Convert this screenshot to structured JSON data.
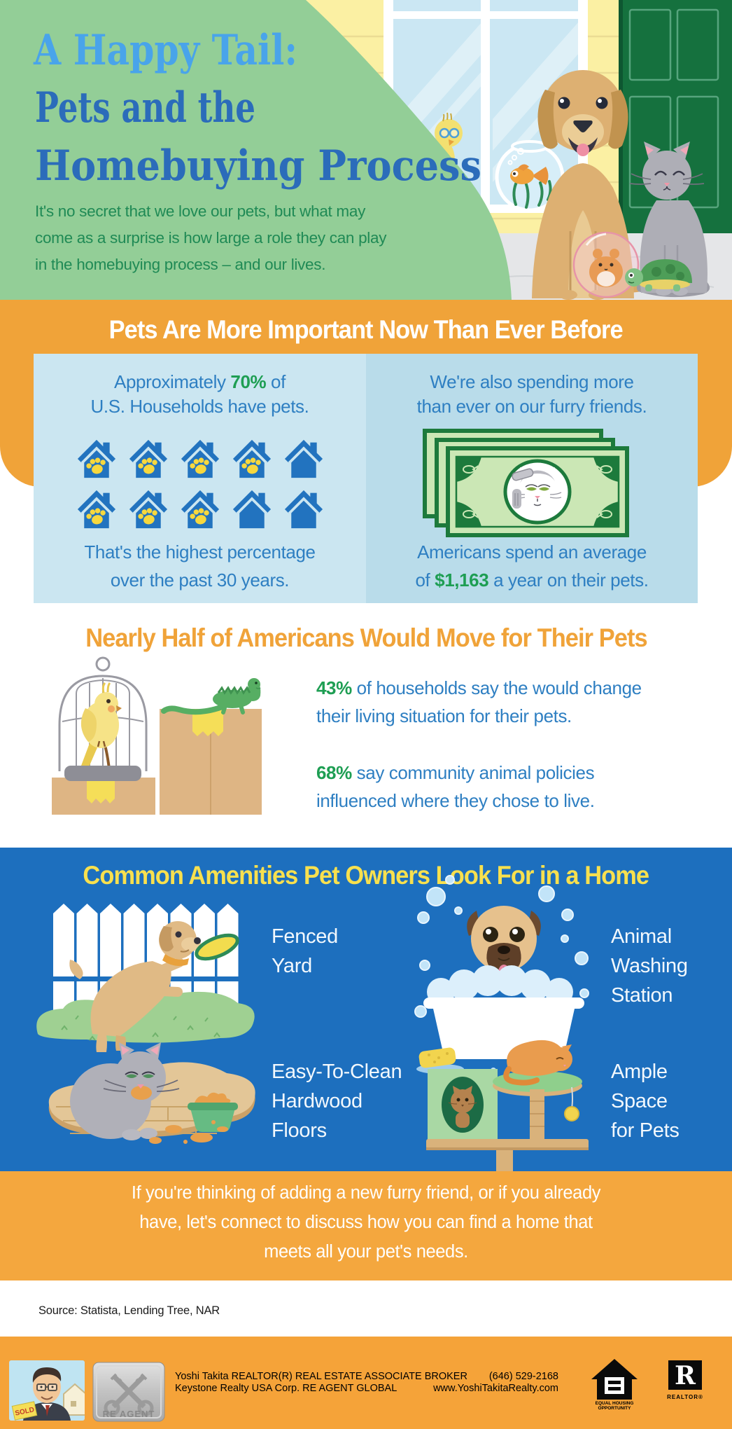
{
  "title": {
    "line1": "A Happy Tail:",
    "line2": "Pets and the",
    "line3": "Homebuying Process"
  },
  "intro": {
    "line1": "It's no secret that we love our pets, but what may",
    "line2": "come as a surprise is how large a role they can play",
    "line3": "in the homebuying process – and our lives."
  },
  "section1": {
    "heading": "Pets Are More Important Now Than Ever Before",
    "left": {
      "l1_pre": "Approximately ",
      "l1_accent": "70%",
      "l1_post": " of",
      "l2": "U.S. Households have pets.",
      "houses": {
        "total": 10,
        "with_paw": 7,
        "rows": [
          [
            1,
            1,
            1,
            1,
            0
          ],
          [
            1,
            1,
            1,
            0,
            0
          ]
        ]
      },
      "b1": "That's the highest percentage",
      "b2": "over the past 30 years."
    },
    "right": {
      "l1": "We're also spending more",
      "l2": "than ever on our furry friends.",
      "b1": "Americans spend an average",
      "b2_pre": "of ",
      "b2_accent": "$1,163",
      "b2_post": " a year on their pets."
    }
  },
  "section2": {
    "heading": "Nearly Half of Americans Would Move for Their Pets",
    "stat1_accent": "43%",
    "stat1_rest": " of households say the would change",
    "stat1_line2": "their living situation for their pets.",
    "stat2_accent": "68%",
    "stat2_rest": " say community animal policies",
    "stat2_line2": "influenced where they chose to live."
  },
  "section3": {
    "heading": "Common Amenities Pet Owners Look For in a Home",
    "items": [
      {
        "label_lines": [
          "Fenced",
          "Yard"
        ]
      },
      {
        "label_lines": [
          "Animal",
          "Washing",
          "Station"
        ]
      },
      {
        "label_lines": [
          "Easy-To-Clean",
          "Hardwood",
          "Floors"
        ]
      },
      {
        "label_lines": [
          "Ample",
          "Space",
          "for Pets"
        ]
      }
    ]
  },
  "cta": {
    "line1": "If you're thinking of adding a new furry friend, or if you already",
    "line2": "have, let's connect to discuss how you can find a home that",
    "line3": "meets all your pet's needs."
  },
  "source": "Source: Statista, Lending Tree, NAR",
  "footer": {
    "line1": "Yoshi Takita REALTOR(R) REAL ESTATE ASSOCIATE BROKER",
    "line2": "Keystone Realty USA Corp.  RE AGENT GLOBAL",
    "phone": "(646) 529-2168",
    "website": "www.YoshiTakitaRealty.com",
    "badge": "RE AGENT",
    "sold": "SOLD",
    "eho1": "EQUAL HOUSING",
    "eho2": "OPPORTUNITY",
    "realtor_r": "R",
    "realtor": "REALTOR®"
  },
  "colors": {
    "green_bg": "#93CE97",
    "orange": "#F0A339",
    "royal_blue": "#1D6FBE",
    "panel_left": "#CBE6F1",
    "panel_right": "#B9DCEA",
    "stat_blue": "#2E7FC2",
    "accent_green": "#1E9E53",
    "heading_yellow": "#F8E04E",
    "title_light_blue": "#49A4EA",
    "title_blue": "#2B6CBA"
  }
}
